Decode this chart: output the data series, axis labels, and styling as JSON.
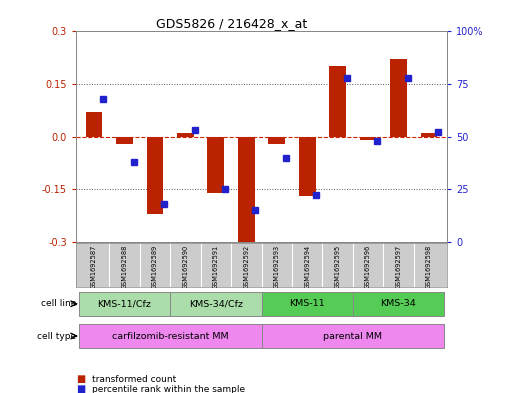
{
  "title": "GDS5826 / 216428_x_at",
  "samples": [
    "GSM1692587",
    "GSM1692588",
    "GSM1692589",
    "GSM1692590",
    "GSM1692591",
    "GSM1692592",
    "GSM1692593",
    "GSM1692594",
    "GSM1692595",
    "GSM1692596",
    "GSM1692597",
    "GSM1692598"
  ],
  "transformed_count": [
    0.07,
    -0.02,
    -0.22,
    0.01,
    -0.16,
    -0.3,
    -0.02,
    -0.17,
    0.2,
    -0.01,
    0.22,
    0.01
  ],
  "percentile_rank": [
    68,
    38,
    18,
    53,
    25,
    15,
    40,
    22,
    78,
    48,
    78,
    52
  ],
  "ylim_left": [
    -0.3,
    0.3
  ],
  "ylim_right": [
    0,
    100
  ],
  "yticks_left": [
    -0.3,
    -0.15,
    0.0,
    0.15,
    0.3
  ],
  "yticks_right": [
    0,
    25,
    50,
    75,
    100
  ],
  "ytick_labels_right": [
    "0",
    "25",
    "50",
    "75",
    "100%"
  ],
  "red_color": "#BB2200",
  "blue_color": "#2222CC",
  "bar_width": 0.55,
  "cell_lines": [
    {
      "label": "KMS-11/Cfz",
      "start": 0,
      "end": 3,
      "color": "#AADDAA"
    },
    {
      "label": "KMS-34/Cfz",
      "start": 3,
      "end": 6,
      "color": "#AADDAA"
    },
    {
      "label": "KMS-11",
      "start": 6,
      "end": 9,
      "color": "#55CC55"
    },
    {
      "label": "KMS-34",
      "start": 9,
      "end": 12,
      "color": "#55CC55"
    }
  ],
  "cell_types": [
    {
      "label": "carfilzomib-resistant MM",
      "start": 0,
      "end": 6,
      "color": "#EE88EE"
    },
    {
      "label": "parental MM",
      "start": 6,
      "end": 12,
      "color": "#EE88EE"
    }
  ],
  "legend_items": [
    {
      "color": "#BB2200",
      "label": "transformed count"
    },
    {
      "color": "#2222CC",
      "label": "percentile rank within the sample"
    }
  ],
  "grid_dotted_color": "#555555",
  "background_color": "#ffffff",
  "sample_label_bg": "#CCCCCC",
  "dotted_levels": [
    -0.15,
    0.15
  ],
  "zero_dashed_color": "#CC2200",
  "border_color": "#888888"
}
